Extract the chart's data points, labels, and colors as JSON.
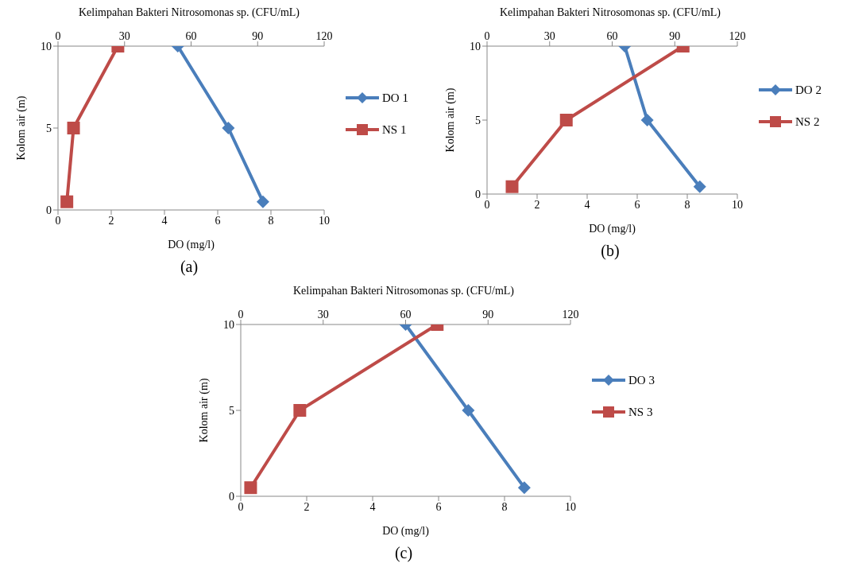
{
  "chart_data": [
    {
      "type": "line",
      "x2label": "Kelimpahan Bakteri Nitrosomonas sp. (CFU/mL)",
      "xlabel": "DO (mg/l)",
      "ylabel": "Kolom air (m)",
      "xlim": [
        0,
        10
      ],
      "xticks": [
        0,
        2,
        4,
        6,
        8,
        10
      ],
      "x2lim": [
        0,
        120
      ],
      "x2ticks": [
        0,
        30,
        60,
        90,
        120
      ],
      "ylim": [
        0,
        10
      ],
      "yticks": [
        0,
        5,
        10
      ],
      "grid": false,
      "legend": "right",
      "annotations": [
        "(a)"
      ],
      "series": [
        {
          "name": "DO 1",
          "color": "#4a7ebb",
          "marker": "diamond",
          "x": [
            4.5,
            6.4,
            7.7
          ],
          "values": [
            10,
            5,
            0.5
          ]
        },
        {
          "name": "NS 1",
          "color": "#be4b48",
          "marker": "square",
          "axis": "x2",
          "x": [
            27,
            7,
            4
          ],
          "values": [
            10,
            5,
            0.5
          ]
        }
      ]
    },
    {
      "type": "line",
      "x2label": "Kelimpahan Bakteri Nitrosomonas sp. (CFU/mL)",
      "xlabel": "DO (mg/l)",
      "ylabel": "Kolom air (m)",
      "xlim": [
        0,
        10
      ],
      "xticks": [
        0,
        2,
        4,
        6,
        8,
        10
      ],
      "x2lim": [
        0,
        120
      ],
      "x2ticks": [
        0,
        30,
        60,
        90,
        120
      ],
      "ylim": [
        0,
        10
      ],
      "yticks": [
        0,
        5,
        10
      ],
      "grid": false,
      "legend": "right",
      "annotations": [
        "(b)"
      ],
      "series": [
        {
          "name": "DO 2",
          "color": "#4a7ebb",
          "marker": "diamond",
          "x": [
            5.5,
            6.4,
            8.5
          ],
          "values": [
            10,
            5,
            0.5
          ]
        },
        {
          "name": "NS 2",
          "color": "#be4b48",
          "marker": "square",
          "axis": "x2",
          "x": [
            94,
            38,
            12
          ],
          "values": [
            10,
            5,
            0.5
          ]
        }
      ]
    },
    {
      "type": "line",
      "x2label": "Kelimpahan Bakteri Nitrosomonas sp. (CFU/mL)",
      "xlabel": "DO (mg/l)",
      "ylabel": "Kolom air (m)",
      "xlim": [
        0,
        10
      ],
      "xticks": [
        0,
        2,
        4,
        6,
        8,
        10
      ],
      "x2lim": [
        0,
        120
      ],
      "x2ticks": [
        0,
        30,
        60,
        90,
        120
      ],
      "ylim": [
        0,
        10
      ],
      "yticks": [
        0,
        5,
        10
      ],
      "grid": false,
      "legend": "right",
      "annotations": [
        "(c)"
      ],
      "series": [
        {
          "name": "DO 3",
          "color": "#4a7ebb",
          "marker": "diamond",
          "x": [
            5,
            6.9,
            8.6
          ],
          "values": [
            10,
            5,
            0.5
          ]
        },
        {
          "name": "NS 3",
          "color": "#be4b48",
          "marker": "square",
          "axis": "x2",
          "x": [
            71.5,
            21.5,
            3.6
          ],
          "values": [
            10,
            5,
            0.5
          ]
        }
      ]
    }
  ]
}
